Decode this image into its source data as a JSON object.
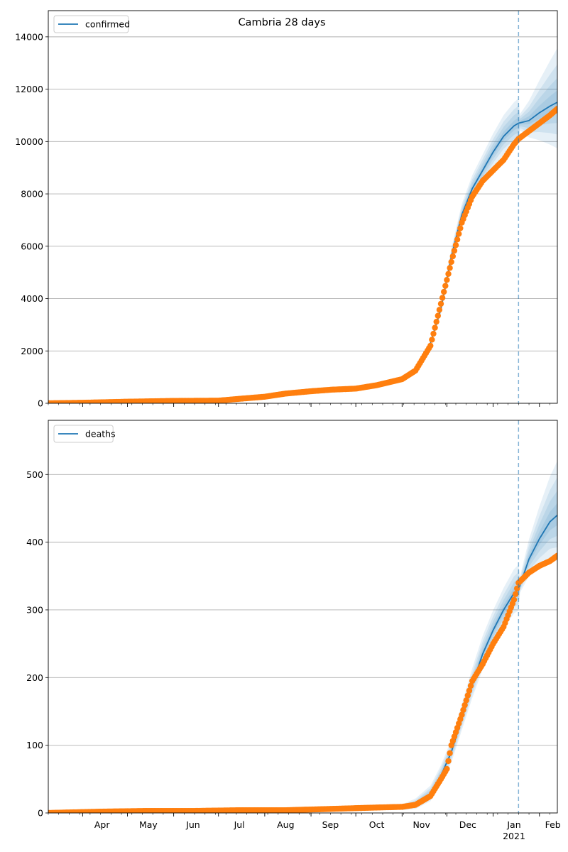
{
  "figure": {
    "title": "Cambria 28 days"
  },
  "x_axis": {
    "month_labels": [
      "Apr",
      "May",
      "Jun",
      "Jul",
      "Aug",
      "Sep",
      "Oct",
      "Nov",
      "Dec",
      "Jan",
      "Feb"
    ],
    "year_label": "2021",
    "start_date": "2020-03-09",
    "end_date": "2021-02-13",
    "forecast_date": "2021-01-18"
  },
  "colors": {
    "model_line": "#1f77b4",
    "observed_points": "#ff7f0e",
    "band": "#1f77b4",
    "grid": "#b0b0b0"
  },
  "chart_data": [
    {
      "type": "line",
      "series": [
        {
          "name": "confirmed",
          "style": "line",
          "x": [
            "2020-11-20",
            "2020-11-27",
            "2020-12-04",
            "2020-12-11",
            "2020-12-18",
            "2020-12-25",
            "2021-01-01",
            "2021-01-08",
            "2021-01-15",
            "2021-01-18",
            "2021-01-25",
            "2021-02-01",
            "2021-02-08",
            "2021-02-13"
          ],
          "values": [
            2300,
            3600,
            5600,
            7200,
            8200,
            8900,
            9600,
            10200,
            10600,
            10700,
            10800,
            11100,
            11350,
            11500
          ]
        },
        {
          "name": "observed",
          "style": "points",
          "x": [
            "2020-03-09",
            "2020-04-01",
            "2020-05-01",
            "2020-06-01",
            "2020-07-01",
            "2020-07-15",
            "2020-08-01",
            "2020-08-15",
            "2020-09-01",
            "2020-09-15",
            "2020-10-01",
            "2020-10-15",
            "2020-11-01",
            "2020-11-10",
            "2020-11-20",
            "2020-11-27",
            "2020-12-04",
            "2020-12-11",
            "2020-12-18",
            "2020-12-25",
            "2021-01-01",
            "2021-01-08",
            "2021-01-15",
            "2021-01-18",
            "2021-01-25",
            "2021-02-01",
            "2021-02-08",
            "2021-02-13"
          ],
          "values": [
            0,
            20,
            60,
            90,
            100,
            170,
            250,
            370,
            460,
            520,
            560,
            690,
            920,
            1250,
            2200,
            3800,
            5400,
            6900,
            7900,
            8500,
            8900,
            9300,
            9900,
            10100,
            10400,
            10700,
            11000,
            11250
          ]
        }
      ],
      "legend": [
        "confirmed"
      ],
      "legend_position": "top-left",
      "ylim": [
        0,
        15000
      ],
      "yticks": [
        0,
        2000,
        4000,
        6000,
        8000,
        10000,
        12000,
        14000
      ],
      "grid": "horizontal"
    },
    {
      "type": "line",
      "series": [
        {
          "name": "deaths",
          "style": "line",
          "x": [
            "2020-11-01",
            "2020-11-10",
            "2020-11-20",
            "2020-11-27",
            "2020-12-04",
            "2020-12-11",
            "2020-12-18",
            "2020-12-25",
            "2021-01-01",
            "2021-01-08",
            "2021-01-15",
            "2021-01-18",
            "2021-01-25",
            "2021-02-01",
            "2021-02-08",
            "2021-02-13"
          ],
          "values": [
            8,
            13,
            28,
            55,
            90,
            140,
            190,
            235,
            270,
            300,
            325,
            330,
            375,
            405,
            430,
            440
          ]
        },
        {
          "name": "observed",
          "style": "points",
          "x": [
            "2020-03-09",
            "2020-04-15",
            "2020-05-15",
            "2020-06-15",
            "2020-07-15",
            "2020-08-15",
            "2020-09-15",
            "2020-10-15",
            "2020-11-01",
            "2020-11-10",
            "2020-11-20",
            "2020-11-27",
            "2020-12-01",
            "2020-12-04",
            "2020-12-11",
            "2020-12-18",
            "2020-12-25",
            "2021-01-01",
            "2021-01-08",
            "2021-01-15",
            "2021-01-18",
            "2021-01-25",
            "2021-02-01",
            "2021-02-08",
            "2021-02-13"
          ],
          "values": [
            0,
            2,
            3,
            3,
            4,
            4,
            6,
            8,
            9,
            12,
            25,
            50,
            65,
            100,
            145,
            195,
            220,
            250,
            275,
            315,
            340,
            355,
            365,
            372,
            380
          ]
        }
      ],
      "legend": [
        "deaths"
      ],
      "legend_position": "top-left",
      "ylim": [
        0,
        580
      ],
      "yticks": [
        0,
        100,
        200,
        300,
        400,
        500
      ],
      "grid": "horizontal"
    }
  ]
}
